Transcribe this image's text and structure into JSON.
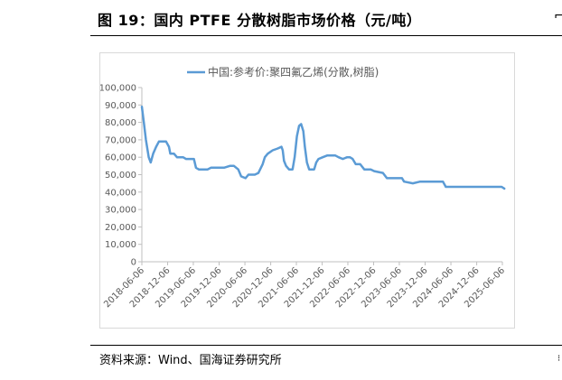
{
  "figure": {
    "title": "图 19：国内 PTFE 分散树脂市场价格（元/吨）",
    "source": "资料来源：Wind、国海证券研究所"
  },
  "chart_data": {
    "type": "line",
    "title": "",
    "xlabel": "",
    "ylabel": "",
    "ylim": [
      0,
      100000
    ],
    "yticks": [
      0,
      10000,
      20000,
      30000,
      40000,
      50000,
      60000,
      70000,
      80000,
      90000,
      100000
    ],
    "ytick_labels": [
      "0",
      "10,000",
      "20,000",
      "30,000",
      "40,000",
      "50,000",
      "60,000",
      "70,000",
      "80,000",
      "90,000",
      "100,000"
    ],
    "xticks": [
      "2018-06-06",
      "2018-12-06",
      "2019-06-06",
      "2019-12-06",
      "2020-06-06",
      "2020-12-06",
      "2021-06-06",
      "2021-12-06",
      "2022-06-06",
      "2022-12-06",
      "2023-06-06",
      "2023-12-06",
      "2024-06-06",
      "2024-12-06",
      "2025-06-06"
    ],
    "grid": false,
    "legend_position": "top",
    "line_color": "#5b9bd5",
    "series": [
      {
        "name": "中国:参考价:聚四氟乙烯(分散,树脂)",
        "points": [
          [
            "2018-06-06",
            89000
          ],
          [
            "2018-06-20",
            80000
          ],
          [
            "2018-07-05",
            70000
          ],
          [
            "2018-07-25",
            60000
          ],
          [
            "2018-08-08",
            57000
          ],
          [
            "2018-08-25",
            62000
          ],
          [
            "2018-09-15",
            66000
          ],
          [
            "2018-10-05",
            69000
          ],
          [
            "2018-11-25",
            69000
          ],
          [
            "2018-12-15",
            66000
          ],
          [
            "2018-12-25",
            62000
          ],
          [
            "2019-01-20",
            62000
          ],
          [
            "2019-02-10",
            60000
          ],
          [
            "2019-03-25",
            60000
          ],
          [
            "2019-04-15",
            59000
          ],
          [
            "2019-05-25",
            59000
          ],
          [
            "2019-06-10",
            59000
          ],
          [
            "2019-06-25",
            54000
          ],
          [
            "2019-07-15",
            53000
          ],
          [
            "2019-09-15",
            53000
          ],
          [
            "2019-10-10",
            54000
          ],
          [
            "2019-12-10",
            54000
          ],
          [
            "2020-01-10",
            54000
          ],
          [
            "2020-02-20",
            55000
          ],
          [
            "2020-03-20",
            55000
          ],
          [
            "2020-04-20",
            53000
          ],
          [
            "2020-05-10",
            49000
          ],
          [
            "2020-06-10",
            48000
          ],
          [
            "2020-07-01",
            50000
          ],
          [
            "2020-08-15",
            50000
          ],
          [
            "2020-09-10",
            51000
          ],
          [
            "2020-10-10",
            56000
          ],
          [
            "2020-10-25",
            60000
          ],
          [
            "2020-11-15",
            62000
          ],
          [
            "2020-12-20",
            64000
          ],
          [
            "2021-01-25",
            65000
          ],
          [
            "2021-02-20",
            66000
          ],
          [
            "2021-03-01",
            64000
          ],
          [
            "2021-03-10",
            58000
          ],
          [
            "2021-03-25",
            55000
          ],
          [
            "2021-04-15",
            53000
          ],
          [
            "2021-05-10",
            53000
          ],
          [
            "2021-05-25",
            60000
          ],
          [
            "2021-06-10",
            72000
          ],
          [
            "2021-06-25",
            78000
          ],
          [
            "2021-07-10",
            79000
          ],
          [
            "2021-07-25",
            75000
          ],
          [
            "2021-08-05",
            66000
          ],
          [
            "2021-08-20",
            57000
          ],
          [
            "2021-09-05",
            53000
          ],
          [
            "2021-10-10",
            53000
          ],
          [
            "2021-10-25",
            57000
          ],
          [
            "2021-11-10",
            59000
          ],
          [
            "2021-12-10",
            60000
          ],
          [
            "2022-01-10",
            61000
          ],
          [
            "2022-03-10",
            61000
          ],
          [
            "2022-04-01",
            60000
          ],
          [
            "2022-05-01",
            59000
          ],
          [
            "2022-06-01",
            60000
          ],
          [
            "2022-06-20",
            60000
          ],
          [
            "2022-07-10",
            59000
          ],
          [
            "2022-08-01",
            56000
          ],
          [
            "2022-09-01",
            56000
          ],
          [
            "2022-10-01",
            53000
          ],
          [
            "2022-11-15",
            53000
          ],
          [
            "2022-12-10",
            52000
          ],
          [
            "2023-02-10",
            51000
          ],
          [
            "2023-03-10",
            48000
          ],
          [
            "2023-06-25",
            48000
          ],
          [
            "2023-07-10",
            46000
          ],
          [
            "2023-09-10",
            45000
          ],
          [
            "2023-11-01",
            46000
          ],
          [
            "2024-04-10",
            46000
          ],
          [
            "2024-05-01",
            43000
          ],
          [
            "2025-05-01",
            43000
          ],
          [
            "2025-06-01",
            43000
          ],
          [
            "2025-06-20",
            42000
          ]
        ]
      }
    ]
  }
}
